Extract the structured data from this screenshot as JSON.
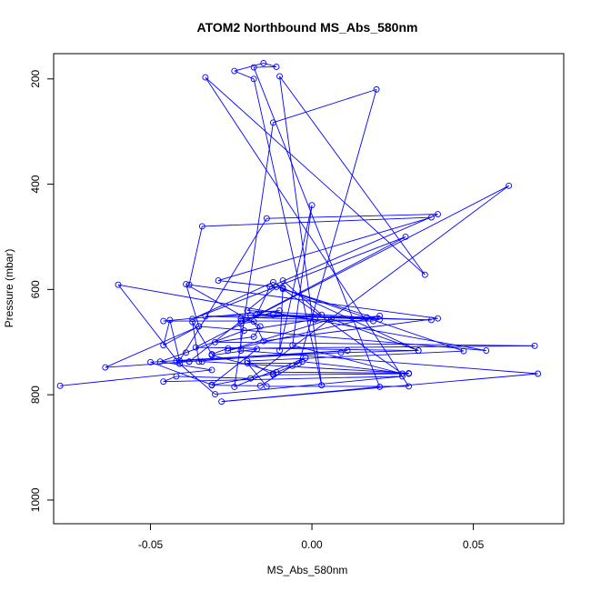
{
  "chart_data": {
    "type": "line",
    "title": "ATOM2 Northbound MS_Abs_580nm",
    "xlabel": "MS_Abs_580nm",
    "ylabel": "Pressure (mbar)",
    "xlim": [
      -0.08,
      0.078
    ],
    "ylim": [
      1045,
      152
    ],
    "y_reversed": true,
    "grid": false,
    "xticks": [
      -0.05,
      0.0,
      0.05
    ],
    "xtick_labels": [
      "-0.05",
      "0.00",
      "0.05"
    ],
    "yticks": [
      200,
      400,
      600,
      800,
      1000
    ],
    "ytick_labels": [
      "200",
      "400",
      "600",
      "800",
      "1000"
    ],
    "series_color": "#0000ff",
    "series": [
      {
        "x": [
          -0.078,
          -0.031,
          -0.047,
          -0.039,
          -0.021,
          0.001,
          -0.012,
          -0.033,
          0.019,
          -0.046,
          -0.01,
          -0.022,
          -0.038,
          0.011,
          -0.05,
          -0.031,
          -0.017,
          -0.031,
          -0.011,
          0.03,
          -0.034,
          -0.035,
          -0.037,
          -0.031,
          -0.026,
          0.069,
          -0.03,
          -0.018,
          -0.016,
          -0.039,
          -0.035,
          0.054,
          -0.06,
          -0.041,
          -0.03,
          0.028,
          -0.046,
          -0.042,
          -0.019,
          0.061,
          -0.036,
          0.033,
          0.009,
          -0.042,
          -0.038,
          -0.064,
          -0.035,
          -0.046,
          -0.044,
          -0.041,
          -0.014,
          0.039,
          -0.013,
          -0.017,
          0.037,
          -0.019,
          0.021,
          -0.011,
          -0.02,
          0.017,
          0.021,
          -0.026,
          0.006,
          0.033,
          -0.009,
          -0.029,
          0.037,
          -0.034,
          -0.038,
          0.039,
          -0.015,
          -0.018,
          -0.022,
          0.029,
          -0.037,
          -0.012,
          0.028,
          -0.006,
          0.0,
          -0.01,
          -0.009,
          0.047,
          -0.02,
          -0.012,
          0.03,
          -0.003,
          -0.006,
          -0.012,
          -0.031,
          -0.016,
          -0.002,
          -0.024,
          -0.012,
          0.02,
          -0.004,
          -0.02,
          -0.014,
          0.03,
          -0.033,
          0.035,
          -0.01,
          0.003,
          -0.018,
          -0.024,
          -0.015,
          -0.011,
          -0.018,
          0.021,
          -0.028,
          0.07,
          -0.022,
          -0.022,
          0.003,
          -0.009
        ],
        "y": [
          783,
          753,
          737,
          720,
          678,
          657,
          648,
          651,
          660,
          660,
          640,
          660,
          737,
          716,
          738,
          781,
          713,
          725,
          757,
          759,
          737,
          737,
          662,
          723,
          712,
          707,
          700,
          690,
          670,
          590,
          670,
          716,
          591,
          741,
          799,
          765,
          775,
          765,
          769,
          403,
          710,
          716,
          720,
          736,
          737,
          748,
          670,
          706,
          658,
          735,
          465,
          457,
          595,
          647,
          658,
          649,
          657,
          595,
          640,
          653,
          650,
          716,
          656,
          716,
          597,
          583,
          463,
          480,
          591,
          655,
          698,
          661,
          665,
          500,
          656,
          586,
          760,
          706,
          440,
          716,
          599,
          717,
          736,
          762,
          760,
          737,
          745,
          760,
          782,
          783,
          730,
          785,
          283,
          220,
          740,
          740,
          784,
          784,
          197,
          572,
          195,
          782,
          200,
          185,
          170,
          177,
          178,
          785,
          813,
          760,
          716,
          655,
          648,
          583
        ]
      }
    ]
  }
}
